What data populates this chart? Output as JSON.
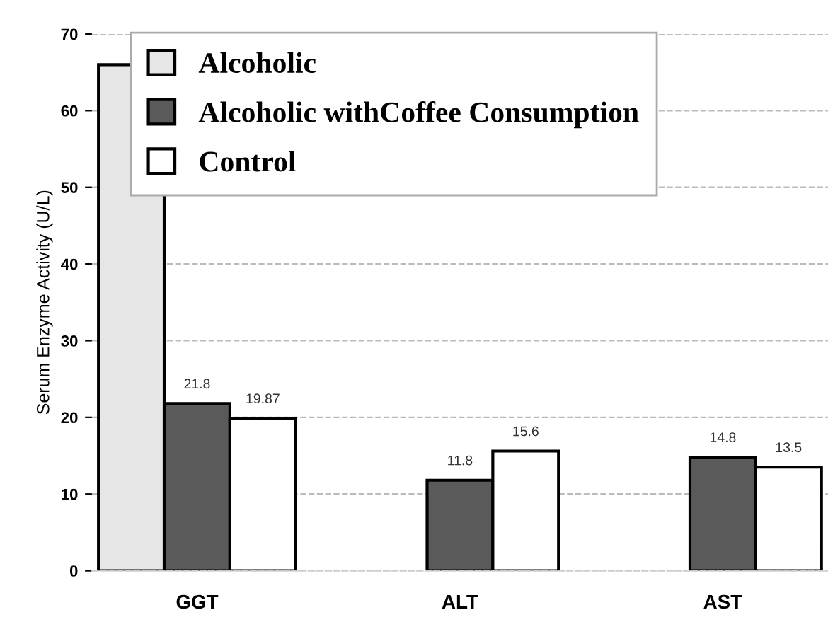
{
  "chart_data": {
    "type": "bar",
    "ylabel": "Serum Enzyme Activity (U/L)",
    "categories": [
      "GGT",
      "ALT",
      "AST"
    ],
    "series": [
      {
        "name": "Alcoholic",
        "color": "#e6e6e6",
        "values": [
          66,
          null,
          null
        ],
        "value_labels": [
          null,
          null,
          null
        ]
      },
      {
        "name": "Alcoholic withCoffee Consumption",
        "color": "#5a5a5a",
        "values": [
          21.8,
          11.8,
          14.8
        ],
        "value_labels": [
          "21.8",
          "11.8",
          "14.8"
        ]
      },
      {
        "name": "Control",
        "color": "#ffffff",
        "values": [
          19.87,
          15.6,
          13.5
        ],
        "value_labels": [
          "19.87",
          "15.6",
          "13.5"
        ]
      }
    ],
    "ylim": [
      0,
      70
    ],
    "yticks": [
      0,
      10,
      20,
      30,
      40,
      50,
      60,
      70
    ],
    "grid": "y",
    "legend": "top"
  }
}
